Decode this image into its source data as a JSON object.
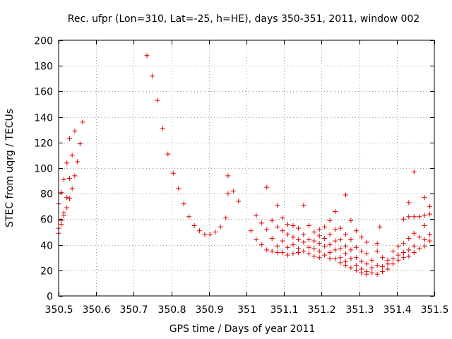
{
  "chart_data": {
    "type": "scatter",
    "title": "Rec. ufpr (Lon=310, Lat=-25, h=HE), days 350-351, 2011, window 002",
    "xlabel": "GPS time / Days of year 2011",
    "ylabel": "STEC from uqrg / TECUs",
    "xlim": [
      350.5,
      351.5
    ],
    "ylim": [
      0,
      200
    ],
    "grid": true,
    "marker": "+",
    "color": "#e00000",
    "xticks": [
      350.5,
      350.6,
      350.7,
      350.8,
      350.9,
      351,
      351.1,
      351.2,
      351.3,
      351.4,
      351.5
    ],
    "xtick_labels": [
      "350.5",
      "350.6",
      "350.7",
      "350.8",
      "350.9",
      "351",
      "351.1",
      "351.2",
      "351.3",
      "351.4",
      "351.5"
    ],
    "yticks": [
      0,
      20,
      40,
      60,
      80,
      100,
      120,
      140,
      160,
      180,
      200
    ],
    "ytick_labels": [
      "0",
      "20",
      "40",
      "60",
      "80",
      "100",
      "120",
      "140",
      "160",
      "180",
      "200"
    ],
    "points": [
      [
        350.5,
        72
      ],
      [
        350.5,
        53
      ],
      [
        350.5,
        49
      ],
      [
        350.507,
        81
      ],
      [
        350.507,
        59
      ],
      [
        350.507,
        56
      ],
      [
        350.514,
        91
      ],
      [
        350.514,
        65
      ],
      [
        350.514,
        63
      ],
      [
        350.522,
        104
      ],
      [
        350.522,
        77
      ],
      [
        350.522,
        69
      ],
      [
        350.529,
        123
      ],
      [
        350.529,
        92
      ],
      [
        350.529,
        76
      ],
      [
        350.536,
        110
      ],
      [
        350.536,
        84
      ],
      [
        350.543,
        129
      ],
      [
        350.543,
        94
      ],
      [
        350.55,
        105
      ],
      [
        350.557,
        119
      ],
      [
        350.564,
        136
      ],
      [
        350.735,
        188
      ],
      [
        350.749,
        172
      ],
      [
        350.763,
        153
      ],
      [
        350.777,
        131
      ],
      [
        350.791,
        111
      ],
      [
        350.805,
        96
      ],
      [
        350.819,
        84
      ],
      [
        350.833,
        72
      ],
      [
        350.847,
        62
      ],
      [
        350.861,
        55
      ],
      [
        350.875,
        51
      ],
      [
        350.889,
        48
      ],
      [
        350.903,
        48
      ],
      [
        350.917,
        50
      ],
      [
        350.931,
        54
      ],
      [
        350.945,
        61
      ],
      [
        350.951,
        94
      ],
      [
        350.951,
        80
      ],
      [
        350.965,
        82
      ],
      [
        350.979,
        74
      ],
      [
        351.012,
        51
      ],
      [
        351.026,
        63
      ],
      [
        351.026,
        44
      ],
      [
        351.04,
        57
      ],
      [
        351.04,
        40
      ],
      [
        351.054,
        85
      ],
      [
        351.054,
        52
      ],
      [
        351.054,
        36
      ],
      [
        351.068,
        59
      ],
      [
        351.068,
        45
      ],
      [
        351.068,
        35
      ],
      [
        351.082,
        71
      ],
      [
        351.082,
        54
      ],
      [
        351.082,
        39
      ],
      [
        351.082,
        34
      ],
      [
        351.096,
        61
      ],
      [
        351.096,
        51
      ],
      [
        351.096,
        43
      ],
      [
        351.096,
        34
      ],
      [
        351.11,
        56
      ],
      [
        351.11,
        48
      ],
      [
        351.11,
        38
      ],
      [
        351.11,
        32
      ],
      [
        351.124,
        55
      ],
      [
        351.124,
        46
      ],
      [
        351.124,
        40
      ],
      [
        351.124,
        33
      ],
      [
        351.138,
        53
      ],
      [
        351.138,
        44
      ],
      [
        351.138,
        37
      ],
      [
        351.138,
        34
      ],
      [
        351.152,
        71
      ],
      [
        351.152,
        48
      ],
      [
        351.152,
        42
      ],
      [
        351.152,
        35
      ],
      [
        351.166,
        55
      ],
      [
        351.166,
        44
      ],
      [
        351.166,
        38
      ],
      [
        351.166,
        33
      ],
      [
        351.18,
        50
      ],
      [
        351.18,
        43
      ],
      [
        351.18,
        37
      ],
      [
        351.18,
        31
      ],
      [
        351.194,
        52
      ],
      [
        351.194,
        47
      ],
      [
        351.194,
        41
      ],
      [
        351.194,
        35
      ],
      [
        351.194,
        30
      ],
      [
        351.208,
        54
      ],
      [
        351.208,
        45
      ],
      [
        351.208,
        39
      ],
      [
        351.208,
        32
      ],
      [
        351.222,
        59
      ],
      [
        351.222,
        48
      ],
      [
        351.222,
        40
      ],
      [
        351.222,
        34
      ],
      [
        351.222,
        29
      ],
      [
        351.236,
        66
      ],
      [
        351.236,
        52
      ],
      [
        351.236,
        43
      ],
      [
        351.236,
        36
      ],
      [
        351.236,
        29
      ],
      [
        351.25,
        53
      ],
      [
        351.25,
        44
      ],
      [
        351.25,
        37
      ],
      [
        351.25,
        30
      ],
      [
        351.25,
        26
      ],
      [
        351.264,
        79
      ],
      [
        351.264,
        48
      ],
      [
        351.264,
        39
      ],
      [
        351.264,
        33
      ],
      [
        351.264,
        27
      ],
      [
        351.264,
        24
      ],
      [
        351.278,
        59
      ],
      [
        351.278,
        44
      ],
      [
        351.278,
        36
      ],
      [
        351.278,
        29
      ],
      [
        351.278,
        22
      ],
      [
        351.292,
        51
      ],
      [
        351.292,
        38
      ],
      [
        351.292,
        30
      ],
      [
        351.292,
        24
      ],
      [
        351.292,
        20
      ],
      [
        351.306,
        46
      ],
      [
        351.306,
        35
      ],
      [
        351.306,
        27
      ],
      [
        351.306,
        21
      ],
      [
        351.306,
        18
      ],
      [
        351.32,
        42
      ],
      [
        351.32,
        33
      ],
      [
        351.32,
        25
      ],
      [
        351.32,
        19
      ],
      [
        351.32,
        17
      ],
      [
        351.334,
        28
      ],
      [
        351.334,
        22
      ],
      [
        351.334,
        18
      ],
      [
        351.348,
        41
      ],
      [
        351.348,
        35
      ],
      [
        351.348,
        24
      ],
      [
        351.348,
        17
      ],
      [
        351.355,
        54
      ],
      [
        351.362,
        30
      ],
      [
        351.362,
        23
      ],
      [
        351.362,
        19
      ],
      [
        351.376,
        28
      ],
      [
        351.376,
        25
      ],
      [
        351.376,
        21
      ],
      [
        351.39,
        35
      ],
      [
        351.39,
        29
      ],
      [
        351.39,
        25
      ],
      [
        351.404,
        39
      ],
      [
        351.404,
        32
      ],
      [
        351.404,
        28
      ],
      [
        351.418,
        60
      ],
      [
        351.418,
        41
      ],
      [
        351.418,
        34
      ],
      [
        351.418,
        30
      ],
      [
        351.432,
        73
      ],
      [
        351.432,
        62
      ],
      [
        351.432,
        45
      ],
      [
        351.432,
        36
      ],
      [
        351.432,
        31
      ],
      [
        351.446,
        97
      ],
      [
        351.446,
        62
      ],
      [
        351.446,
        49
      ],
      [
        351.446,
        39
      ],
      [
        351.446,
        34
      ],
      [
        351.46,
        62
      ],
      [
        351.46,
        46
      ],
      [
        351.46,
        37
      ],
      [
        351.474,
        77
      ],
      [
        351.474,
        63
      ],
      [
        351.474,
        55
      ],
      [
        351.474,
        44
      ],
      [
        351.474,
        39
      ],
      [
        351.488,
        70
      ],
      [
        351.488,
        64
      ],
      [
        351.488,
        48
      ],
      [
        351.488,
        43
      ]
    ]
  }
}
